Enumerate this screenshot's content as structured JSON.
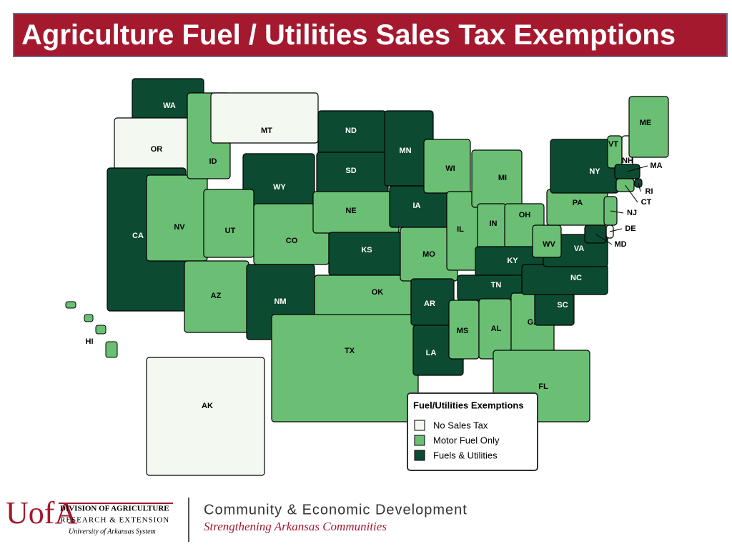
{
  "title": "Agriculture Fuel / Utilities Sales Tax Exemptions",
  "legend": {
    "title": "Fuel/Utilities Exemptions",
    "items": [
      {
        "label": "No Sales Tax",
        "color": "#f3f9f1"
      },
      {
        "label": "Motor Fuel Only",
        "color": "#6abf74"
      },
      {
        "label": "Fuels & Utilities",
        "color": "#0c4a32"
      }
    ]
  },
  "states": [
    {
      "label": "WA",
      "category": 2
    },
    {
      "label": "OR",
      "category": 0
    },
    {
      "label": "CA",
      "category": 2
    },
    {
      "label": "NV",
      "category": 1
    },
    {
      "label": "ID",
      "category": 1
    },
    {
      "label": "MT",
      "category": 0
    },
    {
      "label": "WY",
      "category": 2
    },
    {
      "label": "UT",
      "category": 1
    },
    {
      "label": "CO",
      "category": 1
    },
    {
      "label": "AZ",
      "category": 1
    },
    {
      "label": "NM",
      "category": 2
    },
    {
      "label": "ND",
      "category": 2
    },
    {
      "label": "SD",
      "category": 2
    },
    {
      "label": "NE",
      "category": 1
    },
    {
      "label": "KS",
      "category": 2
    },
    {
      "label": "OK",
      "category": 1
    },
    {
      "label": "TX",
      "category": 1
    },
    {
      "label": "MN",
      "category": 2
    },
    {
      "label": "IA",
      "category": 2
    },
    {
      "label": "MO",
      "category": 1
    },
    {
      "label": "AR",
      "category": 2
    },
    {
      "label": "LA",
      "category": 2
    },
    {
      "label": "WI",
      "category": 1
    },
    {
      "label": "IL",
      "category": 1
    },
    {
      "label": "MI",
      "category": 1
    },
    {
      "label": "IN",
      "category": 1
    },
    {
      "label": "OH",
      "category": 1
    },
    {
      "label": "KY",
      "category": 2
    },
    {
      "label": "TN",
      "category": 2
    },
    {
      "label": "MS",
      "category": 1
    },
    {
      "label": "AL",
      "category": 1
    },
    {
      "label": "GA",
      "category": 1
    },
    {
      "label": "FL",
      "category": 1
    },
    {
      "label": "SC",
      "category": 2
    },
    {
      "label": "NC",
      "category": 2
    },
    {
      "label": "VA",
      "category": 2
    },
    {
      "label": "WV",
      "category": 1
    },
    {
      "label": "PA",
      "category": 1
    },
    {
      "label": "NY",
      "category": 2
    },
    {
      "label": "VT",
      "category": 1
    },
    {
      "label": "NH",
      "category": 0
    },
    {
      "label": "ME",
      "category": 1
    },
    {
      "label": "MA",
      "category": 2
    },
    {
      "label": "RI",
      "category": 2
    },
    {
      "label": "CT",
      "category": 1
    },
    {
      "label": "NJ",
      "category": 1
    },
    {
      "label": "DE",
      "category": 0
    },
    {
      "label": "MD",
      "category": 2
    },
    {
      "label": "AK",
      "category": 0
    },
    {
      "label": "HI",
      "category": 1
    }
  ],
  "footer": {
    "logo": "UofA",
    "division": "DIVISION OF AGRICULTURE",
    "research": "RESEARCH & EXTENSION",
    "system": "University of Arkansas System",
    "program": "Community & Economic Development",
    "tagline": "Strengthening Arkansas Communities"
  }
}
